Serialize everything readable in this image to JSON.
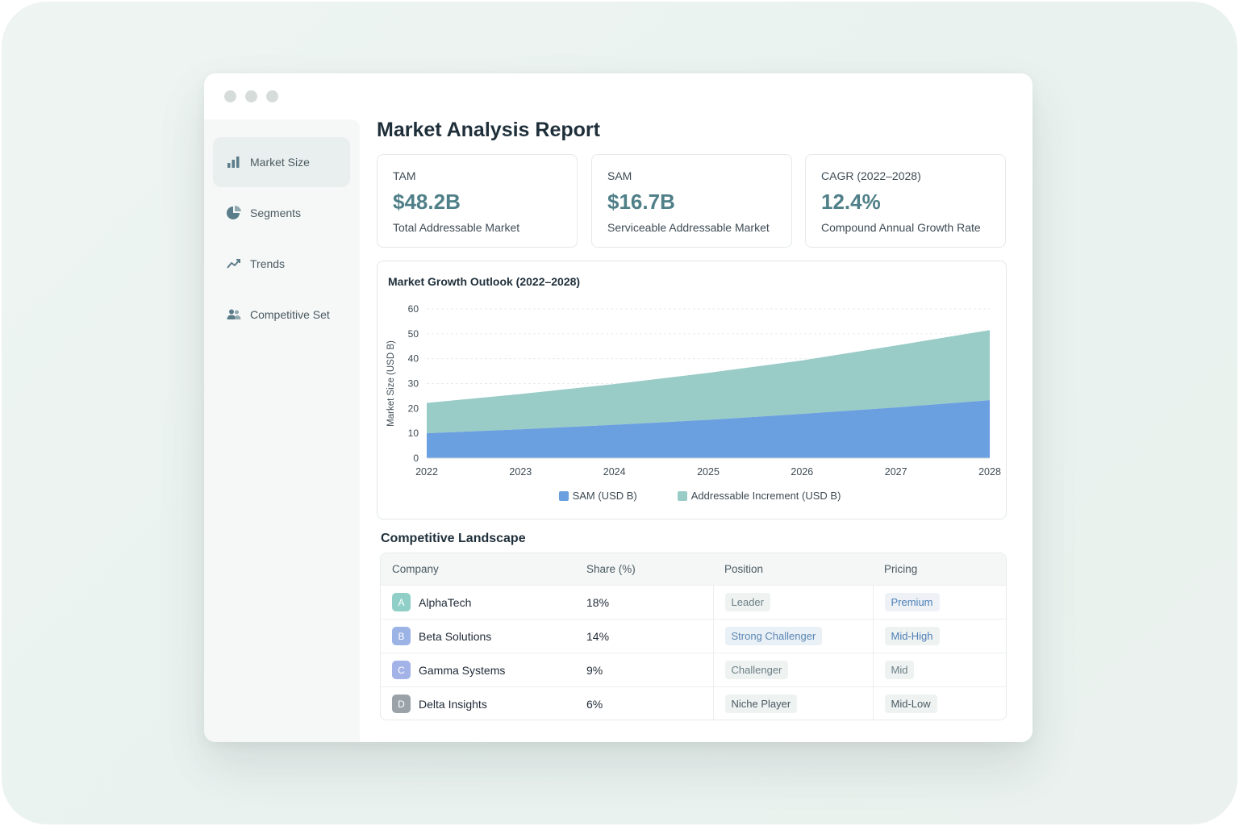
{
  "sidebar": {
    "items": [
      {
        "label": "Market Size",
        "icon": "bar-chart-icon"
      },
      {
        "label": "Segments",
        "icon": "pie-chart-icon"
      },
      {
        "label": "Trends",
        "icon": "trend-up-icon"
      },
      {
        "label": "Competitive Set",
        "icon": "users-icon"
      }
    ]
  },
  "page": {
    "title": "Market Analysis Report"
  },
  "kpis": [
    {
      "label": "TAM",
      "value": "$48.2B",
      "desc": "Total Addressable Market"
    },
    {
      "label": "SAM",
      "value": "$16.7B",
      "desc": "Serviceable Addressable Market"
    },
    {
      "label": "CAGR (2022–2028)",
      "value": "12.4%",
      "desc": "Compound Annual Growth Rate"
    }
  ],
  "chart_data": {
    "type": "area",
    "stacked": true,
    "title": "Market Growth Outlook (2022–2028)",
    "xlabel": "",
    "ylabel": "Market Size (USD B)",
    "x": [
      "2022",
      "2023",
      "2024",
      "2025",
      "2026",
      "2027",
      "2028"
    ],
    "ylim": [
      0,
      60
    ],
    "yticks": [
      0,
      10,
      20,
      30,
      40,
      50,
      60
    ],
    "grid": true,
    "legend": "bottom",
    "series": [
      {
        "name": "SAM (USD B)",
        "color": "#6a9fe0",
        "values": [
          10.0,
          11.6,
          13.4,
          15.4,
          17.8,
          20.4,
          23.3
        ]
      },
      {
        "name": "Addressable Increment (USD B)",
        "color": "#99cbc7",
        "values": [
          12.2,
          14.2,
          16.4,
          18.9,
          21.5,
          24.9,
          28.2
        ]
      }
    ]
  },
  "competitive": {
    "title": "Competitive Landscape",
    "columns": [
      "Company",
      "Share (%)",
      "Position",
      "Pricing"
    ],
    "rows": [
      {
        "initial": "A",
        "color": "#8fcfc7",
        "company": "AlphaTech",
        "share": "18%",
        "position": "Leader",
        "pricing": "Premium"
      },
      {
        "initial": "B",
        "color": "#9cb3e6",
        "company": "Beta Solutions",
        "share": "14%",
        "position": "Strong Challenger",
        "pricing": "Mid-High"
      },
      {
        "initial": "C",
        "color": "#a3b3e8",
        "company": "Gamma Systems",
        "share": "9%",
        "position": "Challenger",
        "pricing": "Mid"
      },
      {
        "initial": "D",
        "color": "#9aa4a8",
        "company": "Delta Insights",
        "share": "6%",
        "position": "Niche Player",
        "pricing": "Mid-Low"
      }
    ]
  }
}
